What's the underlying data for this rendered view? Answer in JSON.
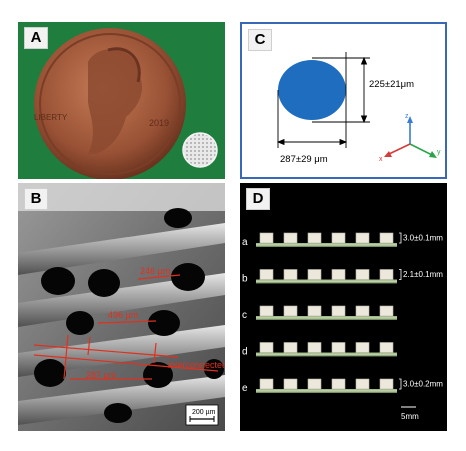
{
  "panels": {
    "a": {
      "letter": "A",
      "coin_text_left": "LIBERTY",
      "coin_year": "2019"
    },
    "b": {
      "letter": "B",
      "dim_top": "246 µm",
      "dim_mid": "496 µm",
      "dim_bottom": "287 µm",
      "annotation_right": "interconnected",
      "scale_bar": "200 µm"
    },
    "c": {
      "letter": "C",
      "dim_height": "225±21μm",
      "dim_width": "287±29 μm",
      "axis_x": "x",
      "axis_y": "y",
      "axis_z": "z"
    },
    "d": {
      "letter": "D",
      "rows": [
        {
          "label": "a",
          "height_label": "3.0±0.1mm"
        },
        {
          "label": "b",
          "height_label": "2.1±0.1mm"
        },
        {
          "label": "c",
          "height_label": ""
        },
        {
          "label": "d",
          "height_label": ""
        },
        {
          "label": "e",
          "height_label": "3.0±0.2mm"
        }
      ],
      "scale_bar": "5mm"
    }
  },
  "colors": {
    "green_background": "#1f7d3d",
    "copper": "#a45a3a",
    "ellipse_blue": "#1f6dbf",
    "frame_blue": "#3a68b8",
    "annotation_red": "#e0301e"
  }
}
